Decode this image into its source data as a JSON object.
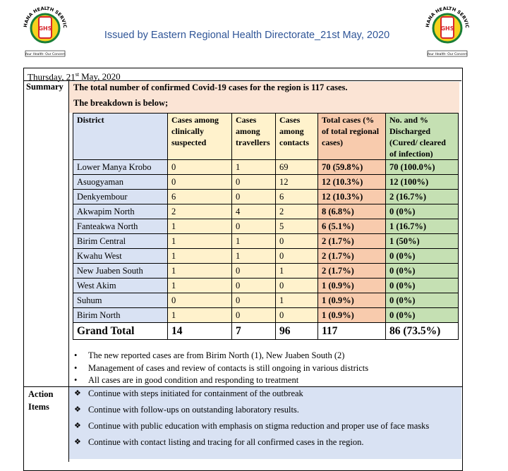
{
  "logo": {
    "name": "GHANA HEALTH SERVICE",
    "initials": "GHS",
    "motto": "Your Health- Our Concern"
  },
  "header": {
    "title": "Issued by Eastern Regional Health Directorate_21st May, 2020"
  },
  "date": {
    "day": "Thursday, 21",
    "suffix": "st",
    "rest": "May, 2020"
  },
  "summary": {
    "label": "Summary",
    "headline": "The total number of confirmed Covid-19 cases for the region is 117 cases.",
    "breakdown": "The breakdown is below;"
  },
  "table": {
    "columns": [
      "District",
      "Cases among clinically suspected",
      "Cases among travellers",
      "Cases among contacts",
      "Total cases (% of total regional cases)",
      "No. and % Discharged (Cured/ cleared of infection)"
    ],
    "rows": [
      [
        "Lower Manya Krobo",
        "0",
        "1",
        "69",
        "70 (59.8%)",
        "70 (100.0%)"
      ],
      [
        "Asuogyaman",
        "0",
        "0",
        "12",
        "12 (10.3%)",
        "12 (100%)"
      ],
      [
        "Denkyembour",
        "6",
        "0",
        "6",
        "12 (10.3%)",
        "2 (16.7%)"
      ],
      [
        "Akwapim North",
        "2",
        "4",
        "2",
        "8 (6.8%)",
        "0 (0%)"
      ],
      [
        "Fanteakwa North",
        "1",
        "0",
        "5",
        "6 (5.1%)",
        "1 (16.7%)"
      ],
      [
        "Birim Central",
        "1",
        "1",
        "0",
        "2 (1.7%)",
        "1 (50%)"
      ],
      [
        "Kwahu West",
        "1",
        "1",
        "0",
        "2 (1.7%)",
        "0 (0%)"
      ],
      [
        "New Juaben South",
        "1",
        "0",
        "1",
        "2 (1.7%)",
        "0 (0%)"
      ],
      [
        "West Akim",
        "1",
        "0",
        "0",
        "1 (0.9%)",
        "0 (0%)"
      ],
      [
        "Suhum",
        "0",
        "0",
        "1",
        "1 (0.9%)",
        "0 (0%)"
      ],
      [
        "Birim North",
        "1",
        "0",
        "0",
        "1 (0.9%)",
        "0 (0%)"
      ]
    ],
    "total": [
      "Grand Total",
      "14",
      "7",
      "96",
      "117",
      "86 (73.5%)"
    ]
  },
  "bullets": [
    "The new reported cases are from Birim North (1), New Juaben South (2)",
    "Management of cases and review of contacts is still ongoing in various districts",
    "All cases are in good condition and responding to treatment"
  ],
  "action": {
    "label": "Action Items",
    "items": [
      "Continue with steps initiated for containment of the outbreak",
      "Continue with follow-ups on outstanding laboratory results.",
      "Continue with public education with emphasis on stigma reduction and proper use of face masks",
      "Continue with contact listing and tracing for all confirmed cases in the region."
    ]
  }
}
